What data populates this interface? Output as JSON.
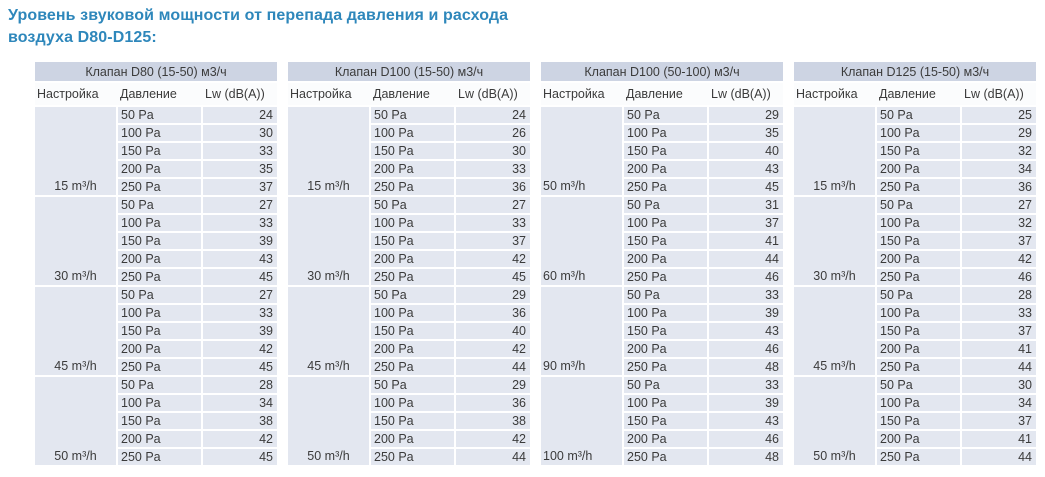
{
  "title": {
    "line1": "Уровень звуковой мощности от перепада давления и расхода",
    "line2": "воздуха D80-D125:"
  },
  "columns": {
    "setting": "Настройка",
    "pressure": "Давление",
    "lw": "Lw (dB(A))"
  },
  "tables": [
    {
      "header": "Клапан D80 (15-50) м3/ч",
      "group_align": "center",
      "groups": [
        {
          "setting": "15 m³/h",
          "rows": [
            [
              "50 Pa",
              24
            ],
            [
              "100 Pa",
              30
            ],
            [
              "150 Pa",
              33
            ],
            [
              "200 Pa",
              35
            ],
            [
              "250 Pa",
              37
            ]
          ]
        },
        {
          "setting": "30 m³/h",
          "rows": [
            [
              "50 Pa",
              27
            ],
            [
              "100 Pa",
              33
            ],
            [
              "150 Pa",
              39
            ],
            [
              "200 Pa",
              43
            ],
            [
              "250 Pa",
              45
            ]
          ]
        },
        {
          "setting": "45 m³/h",
          "rows": [
            [
              "50 Pa",
              27
            ],
            [
              "100 Pa",
              33
            ],
            [
              "150 Pa",
              39
            ],
            [
              "200 Pa",
              42
            ],
            [
              "250 Pa",
              45
            ]
          ]
        },
        {
          "setting": "50 m³/h",
          "rows": [
            [
              "50 Pa",
              28
            ],
            [
              "100 Pa",
              34
            ],
            [
              "150 Pa",
              38
            ],
            [
              "200 Pa",
              42
            ],
            [
              "250 Pa",
              45
            ]
          ]
        }
      ]
    },
    {
      "header": "Клапан D100 (15-50) м3/ч",
      "group_align": "center",
      "groups": [
        {
          "setting": "15 m³/h",
          "rows": [
            [
              "50 Pa",
              24
            ],
            [
              "100 Pa",
              26
            ],
            [
              "150 Pa",
              30
            ],
            [
              "200 Pa",
              33
            ],
            [
              "250 Pa",
              36
            ]
          ]
        },
        {
          "setting": "30 m³/h",
          "rows": [
            [
              "50 Pa",
              27
            ],
            [
              "100 Pa",
              33
            ],
            [
              "150 Pa",
              37
            ],
            [
              "200 Pa",
              42
            ],
            [
              "250 Pa",
              45
            ]
          ]
        },
        {
          "setting": "45 m³/h",
          "rows": [
            [
              "50 Pa",
              29
            ],
            [
              "100 Pa",
              36
            ],
            [
              "150 Pa",
              40
            ],
            [
              "200 Pa",
              42
            ],
            [
              "250 Pa",
              44
            ]
          ]
        },
        {
          "setting": "50 m³/h",
          "rows": [
            [
              "50 Pa",
              29
            ],
            [
              "100 Pa",
              36
            ],
            [
              "150 Pa",
              38
            ],
            [
              "200 Pa",
              42
            ],
            [
              "250 Pa",
              44
            ]
          ]
        }
      ]
    },
    {
      "header": "Клапан D100 (50-100) м3/ч",
      "group_align": "left",
      "groups": [
        {
          "setting": "50 m³/h",
          "rows": [
            [
              "50 Pa",
              29
            ],
            [
              "100 Pa",
              35
            ],
            [
              "150 Pa",
              40
            ],
            [
              "200 Pa",
              43
            ],
            [
              "250 Pa",
              45
            ]
          ]
        },
        {
          "setting": "60 m³/h",
          "rows": [
            [
              "50 Pa",
              31
            ],
            [
              "100 Pa",
              37
            ],
            [
              "150 Pa",
              41
            ],
            [
              "200 Pa",
              44
            ],
            [
              "250 Pa",
              46
            ]
          ]
        },
        {
          "setting": "90 m³/h",
          "rows": [
            [
              "50 Pa",
              33
            ],
            [
              "100 Pa",
              39
            ],
            [
              "150 Pa",
              43
            ],
            [
              "200 Pa",
              46
            ],
            [
              "250 Pa",
              48
            ]
          ]
        },
        {
          "setting": "100 m³/h",
          "rows": [
            [
              "50 Pa",
              33
            ],
            [
              "100 Pa",
              39
            ],
            [
              "150 Pa",
              43
            ],
            [
              "200 Pa",
              46
            ],
            [
              "250 Pa",
              48
            ]
          ]
        }
      ]
    },
    {
      "header": "Клапан D125 (15-50) м3/ч",
      "group_align": "center",
      "groups": [
        {
          "setting": "15 m³/h",
          "rows": [
            [
              "50 Pa",
              25
            ],
            [
              "100 Pa",
              29
            ],
            [
              "150 Pa",
              32
            ],
            [
              "200 Pa",
              34
            ],
            [
              "250 Pa",
              36
            ]
          ]
        },
        {
          "setting": "30 m³/h",
          "rows": [
            [
              "50 Pa",
              27
            ],
            [
              "100 Pa",
              32
            ],
            [
              "150 Pa",
              37
            ],
            [
              "200 Pa",
              42
            ],
            [
              "250 Pa",
              46
            ]
          ]
        },
        {
          "setting": "45 m³/h",
          "rows": [
            [
              "50 Pa",
              28
            ],
            [
              "100 Pa",
              33
            ],
            [
              "150 Pa",
              37
            ],
            [
              "200 Pa",
              41
            ],
            [
              "250 Pa",
              44
            ]
          ]
        },
        {
          "setting": "50 m³/h",
          "rows": [
            [
              "50 Pa",
              30
            ],
            [
              "100 Pa",
              34
            ],
            [
              "150 Pa",
              37
            ],
            [
              "200 Pa",
              41
            ],
            [
              "250 Pa",
              44
            ]
          ]
        }
      ]
    }
  ],
  "colors": {
    "title_text": "#2e87bb",
    "header_band": "#cdd4e3",
    "cell_fill": "#e3e7f0",
    "column_header_fill": "#fbfcfd",
    "body_text": "#3b3b3b"
  }
}
